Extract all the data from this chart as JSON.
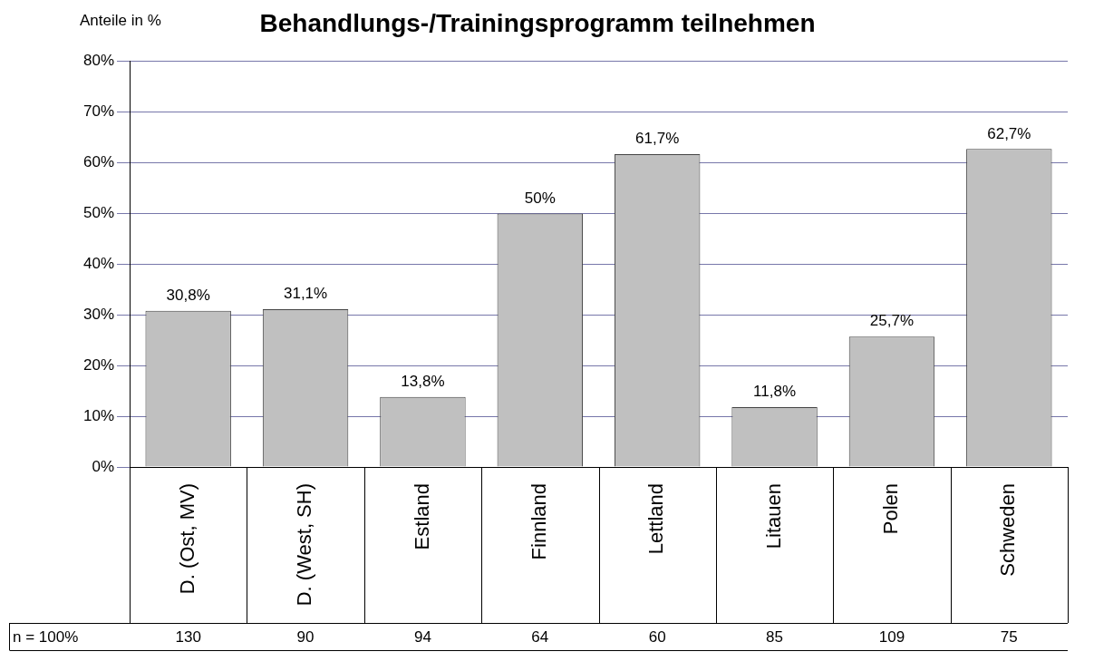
{
  "chart_data": {
    "type": "bar",
    "title": "Behandlungs-/Trainingsprogramm teilnehmen",
    "ylabel": "Anteile in %",
    "categories": [
      "D. (Ost, MV)",
      "D. (West, SH)",
      "Estland",
      "Finnland",
      "Lettland",
      "Litauen",
      "Polen",
      "Schweden"
    ],
    "values": [
      30.8,
      31.1,
      13.8,
      50,
      61.7,
      11.8,
      25.7,
      62.7
    ],
    "value_labels": [
      "30,8%",
      "31,1%",
      "13,8%",
      "50%",
      "61,7%",
      "11,8%",
      "25,7%",
      "62,7%"
    ],
    "color": "#c0c0c0",
    "ylim": [
      0,
      80
    ],
    "yticks": [
      {
        "value": 0,
        "label": "0%"
      },
      {
        "value": 10,
        "label": "10%"
      },
      {
        "value": 20,
        "label": "20%"
      },
      {
        "value": 30,
        "label": "30%"
      },
      {
        "value": 40,
        "label": "40%"
      },
      {
        "value": 50,
        "label": "50%"
      },
      {
        "value": 60,
        "label": "60%"
      },
      {
        "value": 70,
        "label": "70%"
      },
      {
        "value": 80,
        "label": "80%"
      }
    ],
    "grid": "y",
    "annotations": [
      "n = 100%",
      "130",
      "90",
      "94",
      "64",
      "60",
      "85",
      "109",
      "75"
    ]
  }
}
